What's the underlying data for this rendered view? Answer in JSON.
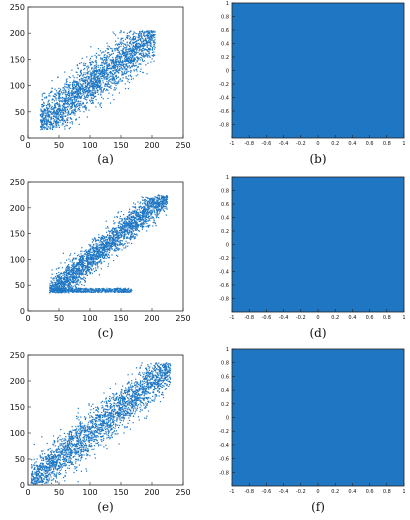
{
  "chart_data": [
    {
      "type": "scatter",
      "caption": "(a)",
      "xlim": [
        0,
        250
      ],
      "ylim": [
        0,
        250
      ],
      "xticks": [
        "0",
        "50",
        "100",
        "150",
        "200",
        "250"
      ],
      "yticks": [
        "0",
        "50",
        "100",
        "150",
        "200",
        "250"
      ],
      "point_color": "#1f77c4",
      "trend": {
        "x_range": [
          20,
          205
        ],
        "slope": 0.92,
        "intercept": 10,
        "spread": 22,
        "ymin": 15,
        "ymax": 205
      }
    },
    {
      "type": "heatmap",
      "caption": "(b)",
      "xlim": [
        -1,
        1
      ],
      "ylim": [
        -1,
        1
      ],
      "xticks": [
        "-1",
        "-0.8",
        "-0.6",
        "-0.4",
        "-0.2",
        "0",
        "0.2",
        "0.4",
        "0.6",
        "0.8",
        "1"
      ],
      "yticks": [
        "-0.8",
        "-0.6",
        "-0.4",
        "-0.2",
        "0",
        "0.2",
        "0.4",
        "0.6",
        "0.8",
        "1"
      ],
      "fill_color": "#1f77c4"
    },
    {
      "type": "scatter",
      "caption": "(c)",
      "xlim": [
        0,
        250
      ],
      "ylim": [
        0,
        250
      ],
      "xticks": [
        "0",
        "50",
        "100",
        "150",
        "200",
        "250"
      ],
      "yticks": [
        "0",
        "50",
        "100",
        "150",
        "200",
        "250"
      ],
      "point_color": "#1f77c4",
      "trend": {
        "x_range": [
          35,
          225
        ],
        "slope": 1.0,
        "intercept": 0,
        "spread": 15,
        "ymin": 35,
        "ymax": 225
      }
    },
    {
      "type": "heatmap",
      "caption": "(d)",
      "xlim": [
        -1,
        1
      ],
      "ylim": [
        -1,
        1
      ],
      "xticks": [
        "-1",
        "-0.8",
        "-0.6",
        "-0.4",
        "-0.2",
        "0",
        "0.2",
        "0.4",
        "0.6",
        "0.8",
        "1"
      ],
      "yticks": [
        "-0.8",
        "-0.6",
        "-0.4",
        "-0.2",
        "0",
        "0.2",
        "0.4",
        "0.6",
        "0.8",
        "1"
      ],
      "fill_color": "#1f77c4"
    },
    {
      "type": "scatter",
      "caption": "(e)",
      "xlim": [
        0,
        250
      ],
      "ylim": [
        0,
        250
      ],
      "xticks": [
        "0",
        "50",
        "100",
        "150",
        "200",
        "250"
      ],
      "yticks": [
        "0",
        "50",
        "100",
        "150",
        "200",
        "250"
      ],
      "point_color": "#1f77c4",
      "trend": {
        "x_range": [
          5,
          230
        ],
        "slope": 0.97,
        "intercept": 3,
        "spread": 20,
        "ymin": 0,
        "ymax": 235
      }
    },
    {
      "type": "heatmap",
      "caption": "(f)",
      "xlim": [
        -1,
        1
      ],
      "ylim": [
        -1,
        1
      ],
      "xticks": [
        "-1",
        "-0.8",
        "-0.6",
        "-0.4",
        "-0.2",
        "0",
        "0.2",
        "0.4",
        "0.6",
        "0.8",
        "1"
      ],
      "yticks": [
        "-0.8",
        "-0.6",
        "-0.4",
        "-0.2",
        "0",
        "0.2",
        "0.4",
        "0.6",
        "0.8",
        "1"
      ],
      "fill_color": "#1f77c4"
    }
  ]
}
